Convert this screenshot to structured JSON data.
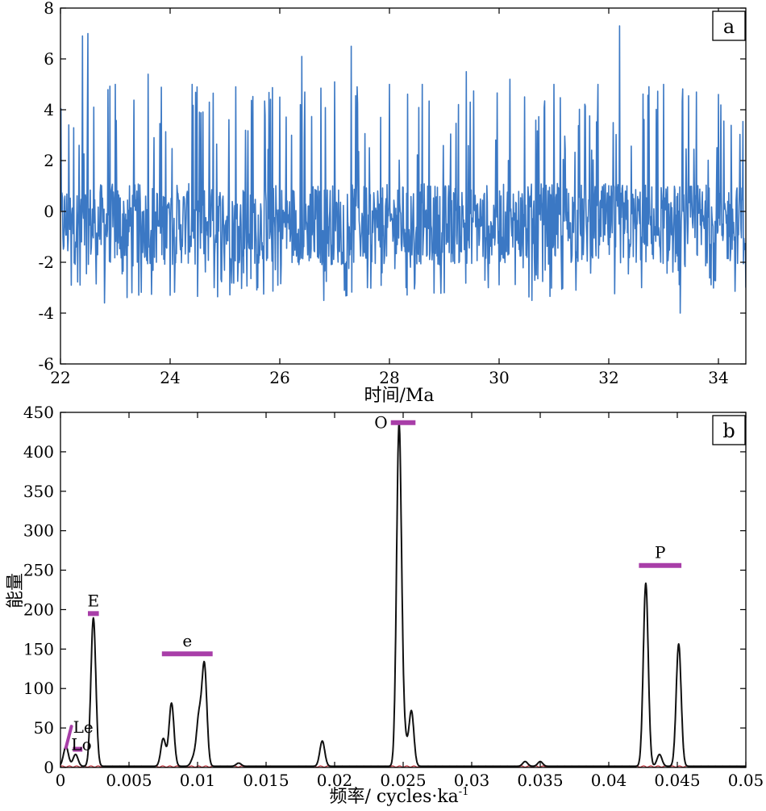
{
  "chart_data": [
    {
      "type": "line",
      "panel_label": "a",
      "xlabel": "时间/Ma",
      "ylabel": "",
      "xlim": [
        22,
        34.5
      ],
      "ylim": [
        -6,
        8
      ],
      "xticks": [
        "22",
        "24",
        "26",
        "28",
        "30",
        "32",
        "34"
      ],
      "yticks": [
        "-6",
        "-4",
        "-2",
        "0",
        "2",
        "4",
        "6",
        "8"
      ],
      "series_color": "#3b78c4",
      "series": [
        {
          "name": "",
          "notes": "dense noisy oscillation around ~0, range about -3.8 to 7.3",
          "x": [
            22.0,
            22.2,
            22.4,
            22.5,
            22.8,
            23.0,
            23.3,
            23.6,
            24.0,
            24.4,
            24.8,
            25.2,
            25.6,
            26.0,
            26.4,
            26.8,
            27.0,
            27.3,
            27.6,
            28.0,
            28.3,
            28.6,
            29.0,
            29.4,
            29.8,
            30.2,
            30.6,
            31.0,
            31.4,
            31.8,
            32.2,
            32.6,
            33.0,
            33.3,
            33.6,
            34.0,
            34.5
          ],
          "values": [
            3.8,
            -2.9,
            6.9,
            7.0,
            -3.6,
            5.0,
            -3.2,
            5.4,
            -3.3,
            5.0,
            -3.0,
            4.9,
            -3.0,
            4.5,
            6.1,
            -3.5,
            5.1,
            6.5,
            -3.0,
            5.0,
            -3.0,
            5.0,
            -3.2,
            5.5,
            -3.0,
            5.2,
            -3.5,
            5.0,
            -3.1,
            5.0,
            7.3,
            -3.0,
            5.0,
            -4.0,
            4.7,
            4.6,
            -3.0
          ]
        }
      ]
    },
    {
      "type": "line",
      "panel_label": "b",
      "xlabel": "频率/ cycles·ka",
      "xlabel_superscript": "-1",
      "ylabel": "能量",
      "xlim": [
        0,
        0.05
      ],
      "ylim": [
        0,
        450
      ],
      "xticks": [
        "0",
        "0.005",
        "0.01",
        "0.015",
        "0.02",
        "0.025",
        "0.03",
        "0.035",
        "0.04",
        "0.045",
        "0.05"
      ],
      "yticks": [
        "0",
        "50",
        "100",
        "150",
        "200",
        "250",
        "300",
        "350",
        "400",
        "450"
      ],
      "series_color": "#111111",
      "baseline_color": "#c0303a",
      "band_color": "#a83ea8",
      "peaks": [
        {
          "x": 0.0004,
          "value": 25
        },
        {
          "x": 0.0011,
          "value": 15
        },
        {
          "x": 0.0024,
          "value": 188
        },
        {
          "x": 0.0075,
          "value": 35
        },
        {
          "x": 0.0081,
          "value": 80
        },
        {
          "x": 0.0097,
          "value": 10
        },
        {
          "x": 0.0101,
          "value": 60
        },
        {
          "x": 0.0105,
          "value": 127
        },
        {
          "x": 0.013,
          "value": 4
        },
        {
          "x": 0.0191,
          "value": 32
        },
        {
          "x": 0.0247,
          "value": 432
        },
        {
          "x": 0.0251,
          "value": 35
        },
        {
          "x": 0.0256,
          "value": 70
        },
        {
          "x": 0.0339,
          "value": 6
        },
        {
          "x": 0.035,
          "value": 6
        },
        {
          "x": 0.0427,
          "value": 232
        },
        {
          "x": 0.0437,
          "value": 15
        },
        {
          "x": 0.0451,
          "value": 155
        }
      ],
      "bands": [
        {
          "label": "Le",
          "x0": 0.0004,
          "x1": 0.0008,
          "y0": 25,
          "y1": 52,
          "slanted": true
        },
        {
          "label": "Lo",
          "x0": 0.0009,
          "x1": 0.0016,
          "y": 23
        },
        {
          "label": "E",
          "x0": 0.002,
          "x1": 0.0028,
          "y": 195
        },
        {
          "label": "e",
          "x0": 0.0074,
          "x1": 0.0111,
          "y": 144
        },
        {
          "label": "O",
          "x0": 0.0241,
          "x1": 0.0259,
          "y": 437
        },
        {
          "label": "P",
          "x0": 0.0422,
          "x1": 0.0453,
          "y": 256
        }
      ]
    }
  ]
}
